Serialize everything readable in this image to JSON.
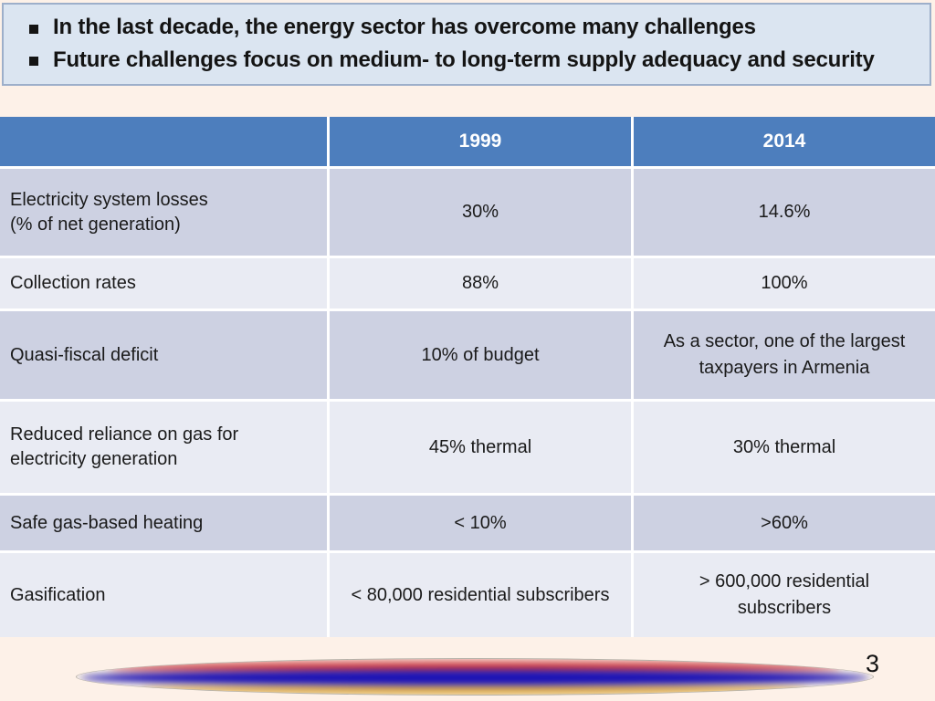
{
  "slide": {
    "background_color": "#fdf1e8"
  },
  "header": {
    "background_color": "#dbe5f1",
    "border_color": "#9dafca",
    "bullets": [
      "In the last decade, the energy sector has overcome many challenges",
      "Future challenges focus on medium- to long-term supply adequacy and security"
    ]
  },
  "table": {
    "header_bg": "#4d7ebd",
    "row_bg_dark": "#cdd1e2",
    "row_bg_light": "#e9ebf3",
    "columns": [
      "",
      "1999",
      "2014"
    ],
    "rows": [
      {
        "label": "Electricity system losses\n(% of net generation)",
        "y1999": "30%",
        "y2014": "14.6%"
      },
      {
        "label": "Collection rates",
        "y1999": "88%",
        "y2014": "100%"
      },
      {
        "label": "Quasi-fiscal deficit",
        "y1999": "10% of budget",
        "y2014": "As a sector, one of the largest taxpayers in Armenia"
      },
      {
        "label": "Reduced reliance on gas for electricity generation",
        "y1999": "45% thermal",
        "y2014": "30% thermal"
      },
      {
        "label": "Safe gas-based heating",
        "y1999": "< 10%",
        "y2014": ">60%"
      },
      {
        "label": "Gasification",
        "y1999": "< 80,000 residential subscribers",
        "y2014": "> 600,000 residential subscribers"
      }
    ]
  },
  "footer": {
    "page_number": "3",
    "flag_colors": {
      "red": "#d02f34",
      "blue": "#1b12b5",
      "gold": "#dfa32b"
    }
  }
}
